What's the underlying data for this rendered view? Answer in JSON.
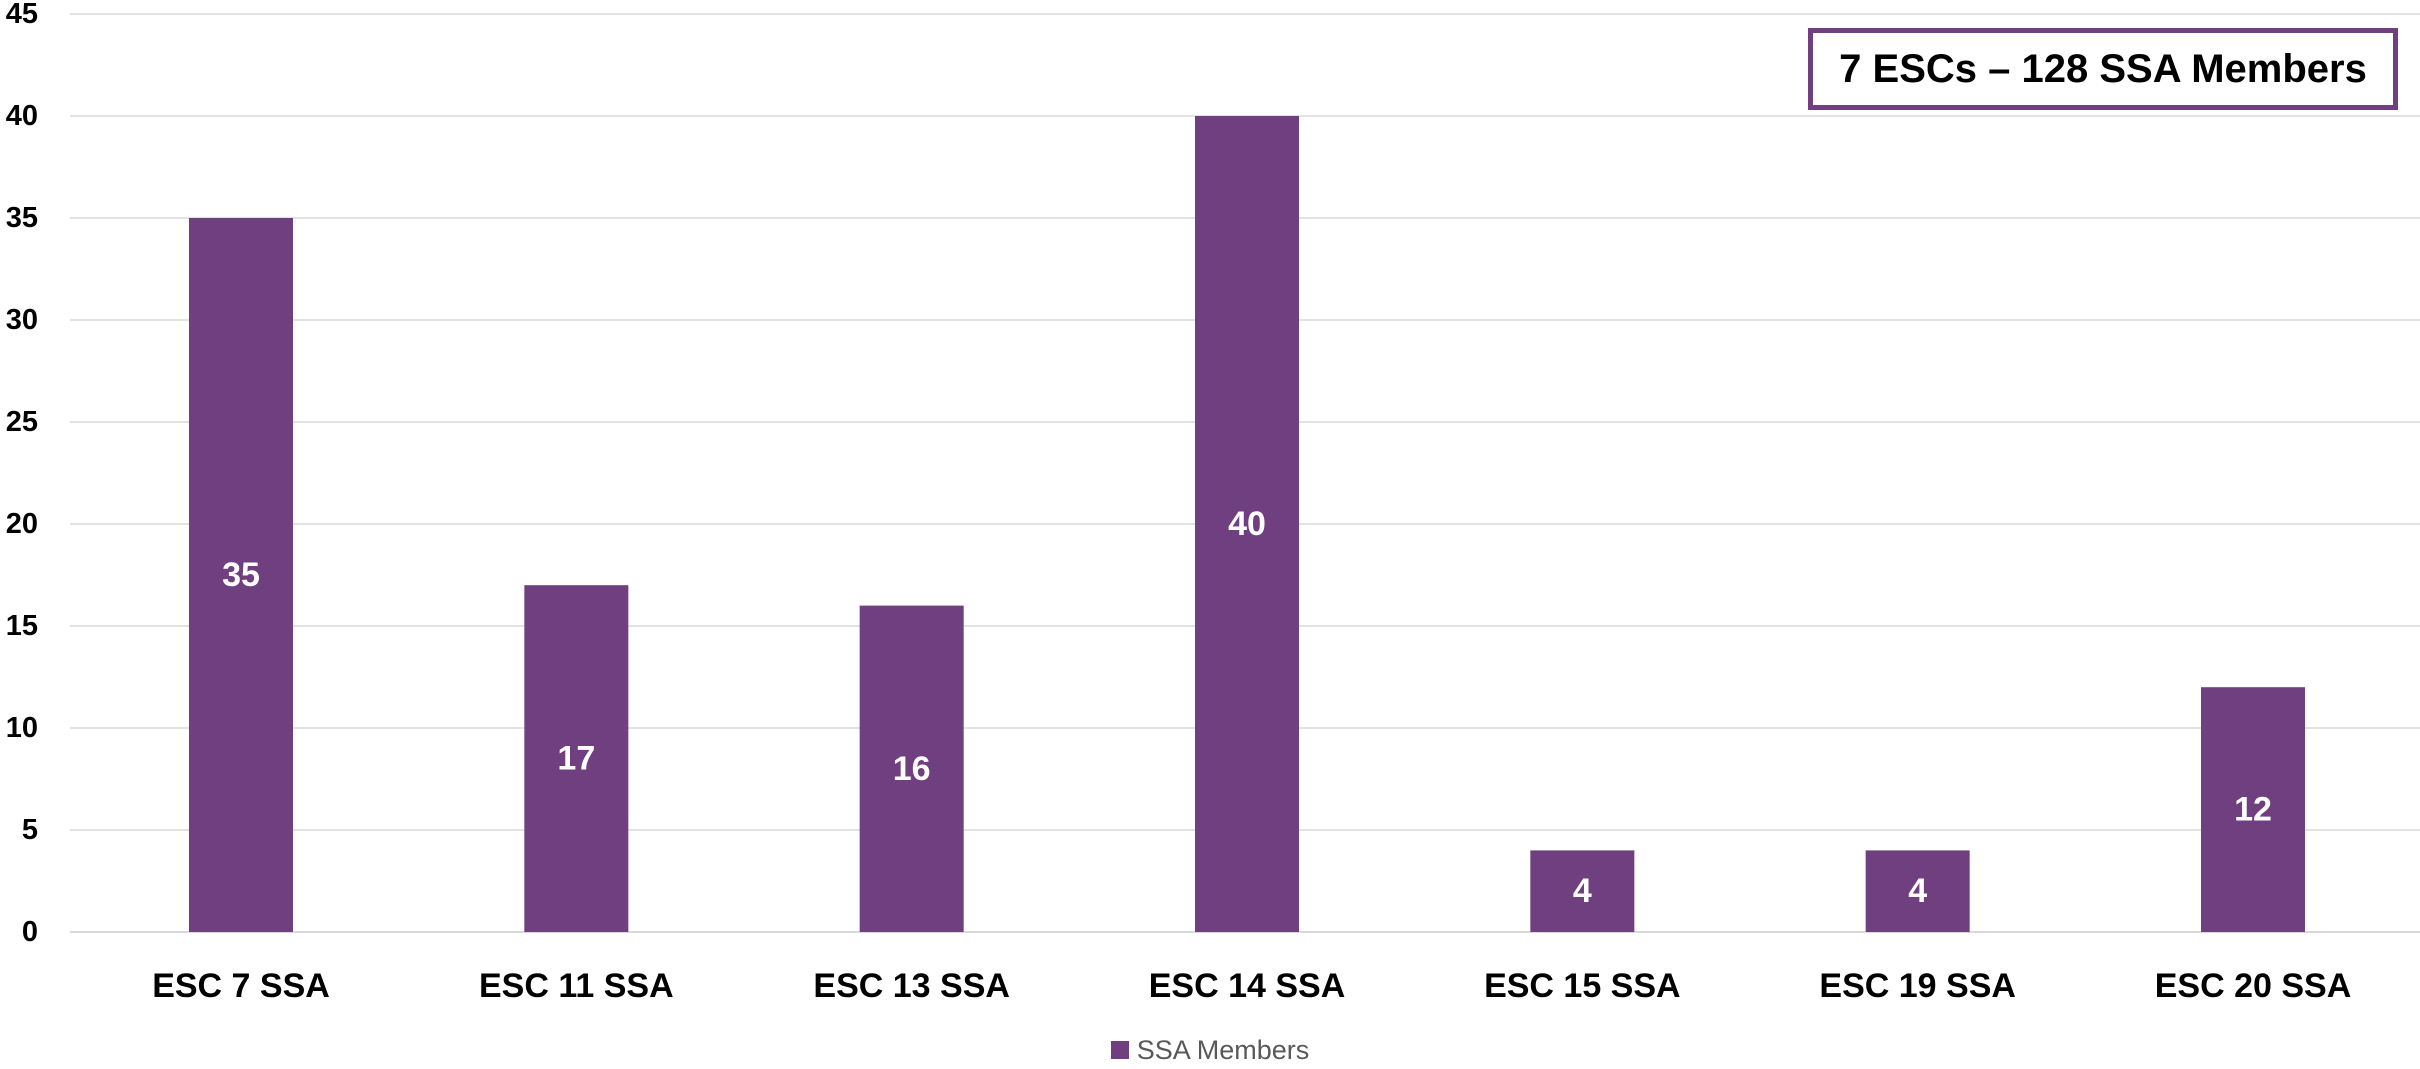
{
  "chart_data": {
    "type": "bar",
    "categories": [
      "ESC 7 SSA",
      "ESC 11 SSA",
      "ESC 13 SSA",
      "ESC 14 SSA",
      "ESC 15 SSA",
      "ESC 19 SSA",
      "ESC 20 SSA"
    ],
    "series": [
      {
        "name": "SSA Members",
        "values": [
          35,
          17,
          16,
          40,
          4,
          4,
          12
        ],
        "color": "#6f3f7f"
      }
    ],
    "data_labels": [
      "35",
      "17",
      "16",
      "40",
      "4",
      "4",
      "12"
    ],
    "y_ticks": [
      "0",
      "5",
      "10",
      "15",
      "20",
      "25",
      "30",
      "35",
      "40",
      "45"
    ],
    "ylim": [
      0,
      45
    ],
    "grid": true,
    "legend_position": "bottom",
    "annotation": "7 ESCs – 128 SSA Members",
    "colors": {
      "bar": "#6f3f7f",
      "gridline": "#d9d9d9",
      "axis_text": "#000000",
      "legend_text": "#595959"
    }
  }
}
